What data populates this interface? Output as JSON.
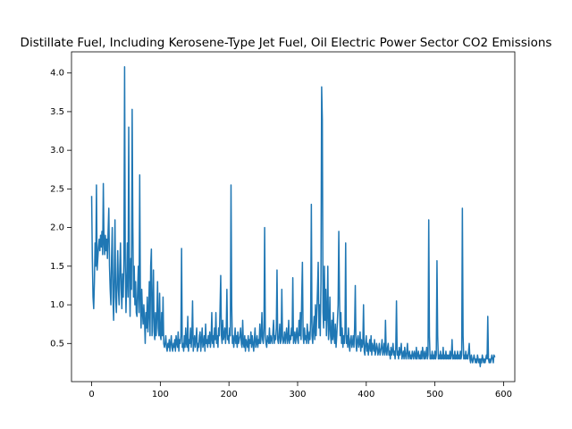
{
  "chart_data": {
    "type": "line",
    "title": "Distillate Fuel, Including Kerosene-Type Jet Fuel, Oil Electric Power Sector CO2 Emissions",
    "color": "#1f77b4",
    "xlim": [
      -29.35,
      616.35
    ],
    "xticks": [
      0,
      100,
      200,
      300,
      400,
      500,
      600
    ],
    "ylim": [
      0.006,
      4.274
    ],
    "yticks": [
      0.5,
      {
        "value": 1,
        "label": "1.0"
      },
      1.5,
      {
        "value": 2,
        "label": "2.0"
      },
      2.5,
      {
        "value": 3,
        "label": "3.0"
      },
      3.5,
      {
        "value": 4,
        "label": "4.0"
      }
    ],
    "values": [
      2.4,
      1.6,
      1.1,
      0.95,
      1.3,
      1.8,
      1.5,
      2.55,
      1.45,
      1.6,
      1.75,
      1.85,
      1.7,
      1.9,
      1.75,
      1.95,
      1.65,
      2.57,
      1.8,
      1.65,
      1.9,
      1.7,
      1.85,
      1.6,
      1.95,
      2.25,
      1.5,
      1.2,
      1.0,
      1.6,
      2.0,
      1.1,
      0.8,
      1.4,
      2.1,
      1.1,
      0.9,
      1.3,
      1.7,
      1.2,
      1.0,
      1.5,
      1.8,
      1.2,
      0.95,
      1.4,
      1.1,
      1.6,
      4.08,
      1.5,
      0.9,
      1.3,
      1.8,
      1.1,
      3.3,
      1.4,
      0.85,
      1.6,
      1.2,
      3.53,
      2.0,
      1.1,
      1.5,
      1.0,
      1.3,
      0.9,
      0.85,
      1.2,
      1.5,
      0.9,
      2.68,
      1.1,
      0.7,
      1.2,
      0.9,
      0.75,
      1.0,
      0.8,
      0.5,
      0.9,
      0.7,
      1.1,
      0.65,
      0.9,
      1.3,
      0.6,
      1.5,
      1.72,
      0.6,
      0.9,
      1.45,
      0.65,
      0.55,
      0.9,
      0.6,
      0.85,
      1.3,
      0.7,
      0.6,
      1.15,
      0.6,
      0.55,
      0.9,
      0.6,
      1.1,
      0.5,
      0.45,
      0.5,
      0.6,
      0.45,
      0.4,
      0.5,
      0.45,
      0.55,
      0.4,
      0.5,
      0.6,
      0.45,
      0.4,
      0.5,
      0.45,
      0.55,
      0.4,
      0.6,
      0.5,
      0.45,
      0.65,
      0.4,
      0.55,
      0.5,
      0.6,
      1.73,
      0.45,
      0.5,
      0.4,
      0.6,
      0.45,
      0.7,
      0.5,
      0.45,
      0.85,
      0.4,
      0.55,
      0.5,
      0.7,
      0.45,
      0.6,
      1.05,
      0.4,
      0.5,
      0.6,
      0.45,
      0.55,
      0.7,
      0.4,
      0.5,
      0.45,
      0.6,
      0.65,
      0.4,
      0.55,
      0.7,
      0.45,
      0.5,
      0.6,
      0.4,
      0.75,
      0.5,
      0.55,
      0.45,
      0.6,
      0.5,
      0.65,
      0.45,
      0.55,
      0.9,
      0.5,
      0.6,
      0.45,
      0.7,
      0.55,
      0.9,
      0.5,
      0.6,
      0.45,
      0.7,
      0.6,
      0.95,
      1.38,
      0.6,
      0.5,
      0.8,
      0.55,
      0.6,
      0.7,
      0.5,
      0.65,
      1.2,
      0.55,
      0.6,
      0.5,
      0.7,
      0.6,
      2.55,
      1.0,
      0.5,
      0.6,
      0.45,
      0.55,
      0.7,
      0.5,
      0.6,
      0.45,
      0.65,
      0.5,
      0.55,
      0.6,
      0.7,
      0.5,
      0.45,
      0.8,
      0.5,
      0.45,
      0.6,
      0.4,
      0.55,
      0.5,
      0.45,
      0.6,
      0.4,
      0.55,
      0.5,
      0.65,
      0.45,
      0.6,
      0.5,
      0.4,
      0.55,
      0.7,
      0.45,
      0.5,
      0.6,
      0.45,
      0.55,
      0.5,
      0.75,
      0.5,
      0.6,
      0.9,
      0.55,
      0.5,
      0.7,
      2.0,
      0.6,
      0.5,
      0.45,
      0.6,
      0.55,
      0.5,
      0.7,
      0.5,
      0.6,
      0.55,
      0.5,
      0.65,
      0.8,
      0.5,
      0.6,
      0.55,
      0.7,
      1.45,
      0.55,
      0.5,
      0.6,
      0.75,
      0.5,
      0.55,
      1.2,
      0.6,
      0.5,
      0.55,
      0.65,
      0.5,
      0.6,
      0.7,
      0.5,
      0.55,
      0.8,
      0.5,
      0.6,
      0.55,
      0.7,
      0.6,
      1.35,
      0.5,
      0.55,
      0.65,
      0.5,
      0.6,
      0.7,
      0.55,
      0.5,
      0.8,
      0.6,
      0.9,
      0.55,
      1.1,
      1.55,
      0.6,
      0.5,
      0.7,
      0.55,
      0.6,
      0.5,
      0.75,
      0.6,
      0.5,
      0.65,
      0.55,
      0.8,
      2.3,
      0.6,
      0.5,
      0.7,
      0.85,
      0.55,
      1.0,
      0.6,
      0.9,
      1.2,
      1.55,
      0.7,
      1.0,
      0.6,
      1.3,
      3.82,
      3.4,
      0.9,
      0.7,
      1.5,
      0.8,
      1.2,
      0.6,
      0.9,
      1.5,
      0.55,
      0.7,
      1.1,
      0.6,
      0.5,
      0.8,
      0.55,
      0.9,
      0.6,
      0.5,
      0.75,
      0.45,
      0.6,
      0.8,
      1.0,
      1.95,
      1.1,
      0.6,
      0.9,
      0.5,
      0.7,
      0.45,
      0.6,
      0.5,
      0.65,
      1.8,
      0.5,
      0.6,
      0.45,
      0.7,
      0.5,
      0.4,
      0.55,
      0.6,
      0.45,
      0.5,
      0.6,
      0.45,
      0.7,
      1.25,
      0.5,
      0.4,
      0.55,
      0.6,
      0.45,
      0.5,
      0.65,
      0.4,
      0.55,
      0.45,
      0.5,
      1.0,
      0.4,
      0.35,
      0.5,
      0.6,
      0.4,
      0.5,
      0.35,
      0.45,
      0.55,
      0.4,
      0.6,
      0.35,
      0.5,
      0.45,
      0.4,
      0.55,
      0.35,
      0.4,
      0.5,
      0.45,
      0.35,
      0.4,
      0.5,
      0.35,
      0.4,
      0.45,
      0.55,
      0.35,
      0.4,
      0.5,
      0.35,
      0.8,
      0.4,
      0.35,
      0.45,
      0.5,
      0.35,
      0.4,
      0.3,
      0.45,
      0.35,
      0.4,
      0.5,
      0.35,
      0.4,
      0.3,
      0.45,
      1.05,
      0.35,
      0.4,
      0.3,
      0.45,
      0.35,
      0.4,
      0.5,
      0.3,
      0.35,
      0.4,
      0.3,
      0.45,
      0.35,
      0.3,
      0.4,
      0.5,
      0.3,
      0.35,
      0.4,
      0.3,
      0.35,
      0.3,
      0.4,
      0.35,
      0.3,
      0.4,
      0.35,
      0.3,
      0.45,
      0.3,
      0.35,
      0.4,
      0.3,
      0.35,
      0.3,
      0.4,
      0.3,
      0.45,
      0.35,
      0.3,
      0.4,
      0.3,
      0.35,
      0.45,
      0.3,
      0.35,
      2.1,
      0.6,
      0.3,
      0.35,
      0.3,
      0.4,
      0.3,
      0.35,
      0.3,
      0.4,
      0.3,
      0.35,
      1.57,
      0.6,
      0.3,
      0.35,
      0.3,
      0.4,
      0.3,
      0.35,
      0.3,
      0.45,
      0.3,
      0.35,
      0.3,
      0.4,
      0.3,
      0.35,
      0.3,
      0.35,
      0.3,
      0.4,
      0.3,
      0.35,
      0.55,
      0.3,
      0.35,
      0.3,
      0.4,
      0.3,
      0.35,
      0.3,
      0.4,
      0.3,
      0.35,
      0.3,
      0.4,
      0.3,
      0.35,
      2.25,
      0.6,
      0.3,
      0.35,
      0.3,
      0.4,
      0.3,
      0.35,
      0.3,
      0.4,
      0.5,
      0.3,
      0.25,
      0.35,
      0.3,
      0.25,
      0.3,
      0.35,
      0.3,
      0.25,
      0.3,
      0.25,
      0.35,
      0.3,
      0.25,
      0.3,
      0.2,
      0.3,
      0.25,
      0.35,
      0.3,
      0.25,
      0.3,
      0.25,
      0.3,
      0.35,
      0.3,
      0.85,
      0.3,
      0.25,
      0.3,
      0.25,
      0.3,
      0.35,
      0.3,
      0.25,
      0.35,
      0.33
    ]
  }
}
